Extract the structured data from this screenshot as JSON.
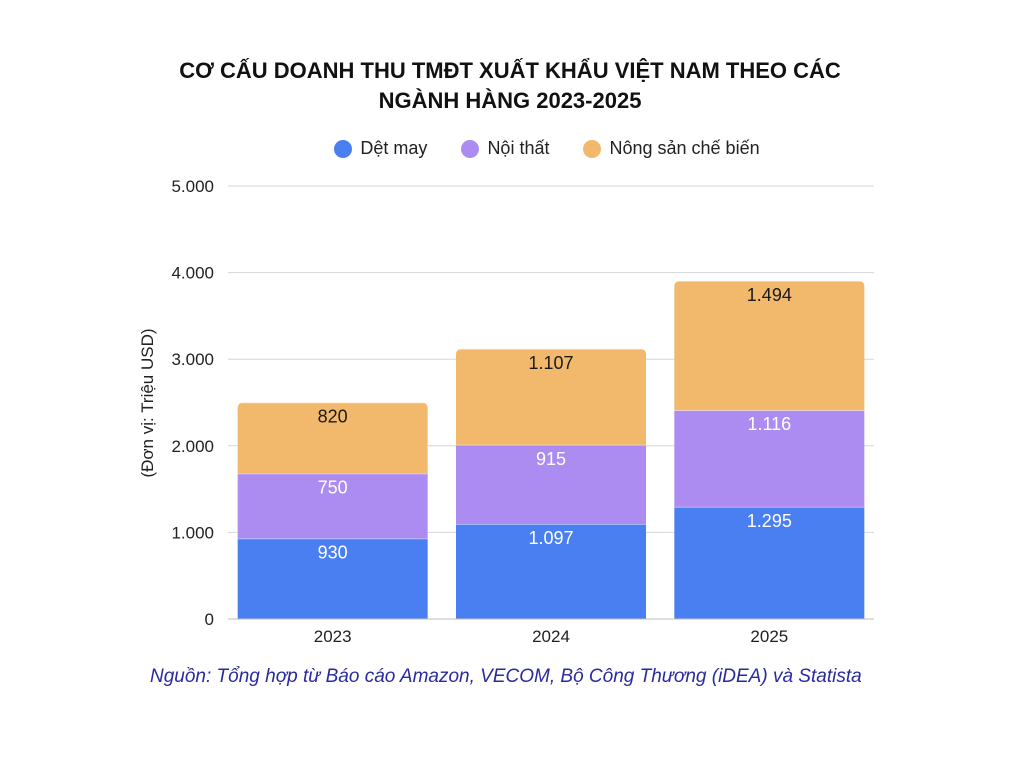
{
  "chart_data": {
    "type": "bar",
    "stacked": true,
    "title": "CƠ CẤU DOANH THU TMĐT XUẤT KHẨU VIỆT NAM THEO CÁC NGÀNH HÀNG 2023-2025",
    "ylabel": "(Đơn vị: Triệu USD)",
    "xlabel": "",
    "categories": [
      "2023",
      "2024",
      "2025"
    ],
    "ylim": [
      0,
      5000
    ],
    "yticks": [
      0,
      1000,
      2000,
      3000,
      4000,
      5000
    ],
    "ytick_labels": [
      "0",
      "1.000",
      "2.000",
      "3.000",
      "4.000",
      "5.000"
    ],
    "grid": true,
    "legend_position": "top",
    "series": [
      {
        "name": "Dệt may",
        "color": "#4a7ff2",
        "label_color": "#ffffff",
        "values": [
          930,
          1097,
          1295
        ],
        "labels": [
          "930",
          "1.097",
          "1.295"
        ]
      },
      {
        "name": "Nội thất",
        "color": "#ad8cf2",
        "label_color": "#ffffff",
        "values": [
          750,
          915,
          1116
        ],
        "labels": [
          "750",
          "915",
          "1.116"
        ]
      },
      {
        "name": "Nông sản chế biến",
        "color": "#f2b96c",
        "label_color": "#1a1a1a",
        "values": [
          820,
          1107,
          1494
        ],
        "labels": [
          "820",
          "1.107",
          "1.494"
        ]
      }
    ]
  },
  "source": "Nguồn: Tổng hợp từ Báo cáo Amazon, VECOM, Bộ Công Thương (iDEA) và  Statista"
}
